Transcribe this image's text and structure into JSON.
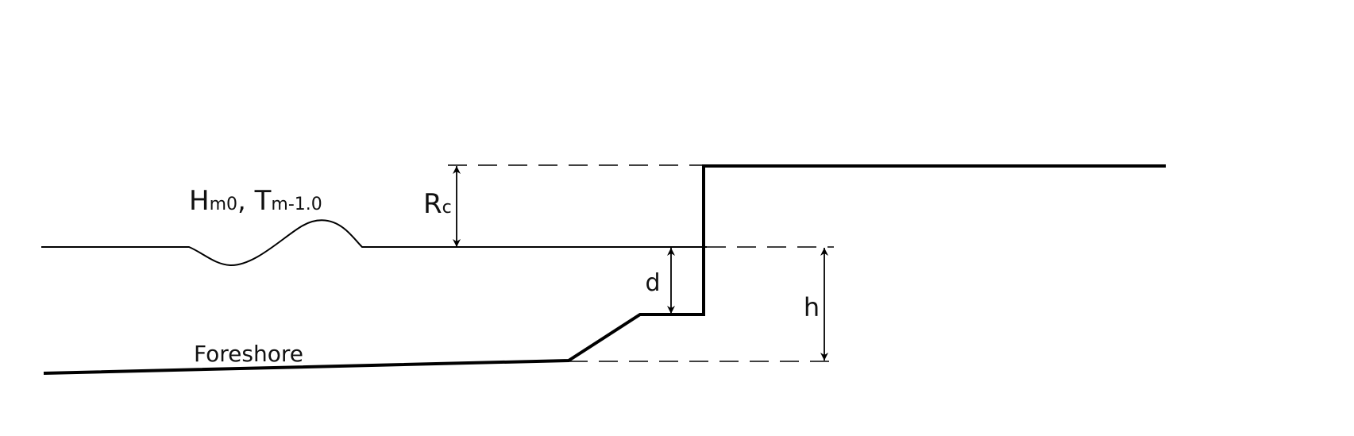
{
  "labels": {
    "wave_h": "H",
    "wave_h_sub": "m0",
    "wave_sep": ", ",
    "wave_t": "T",
    "wave_t_sub": "m-1.0",
    "rc": "R",
    "rc_sub": "c",
    "d": "d",
    "h": "h",
    "foreshore": "Foreshore"
  },
  "colors": {
    "line": "#000000"
  }
}
